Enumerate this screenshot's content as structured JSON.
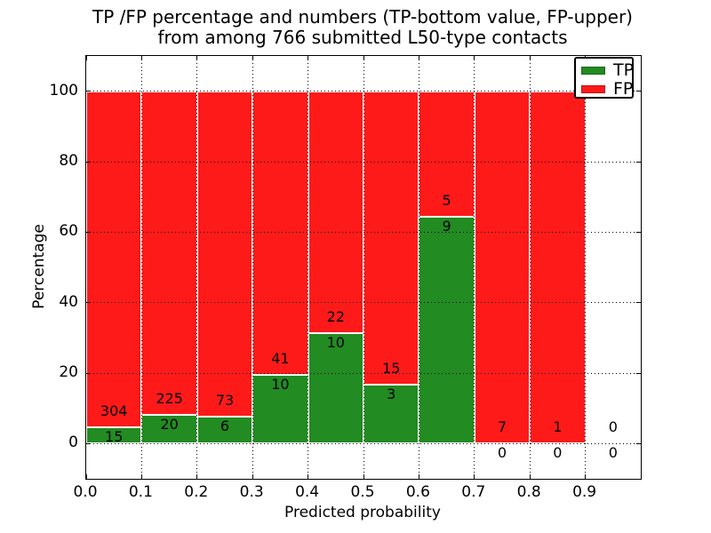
{
  "chart_data": {
    "type": "bar",
    "stacked": true,
    "normalized_to_percent": true,
    "title": "TP /FP percentage and numbers (TP-bottom value, FP-upper)\nfrom among 766 submitted L50-type contacts",
    "xlabel": "Predicted probability",
    "ylabel": "Percentage",
    "xlim": [
      0.0,
      1.0
    ],
    "ylim": [
      -10,
      110
    ],
    "xticks": [
      "0.0",
      "0.1",
      "0.2",
      "0.3",
      "0.4",
      "0.5",
      "0.6",
      "0.7",
      "0.8",
      "0.9"
    ],
    "yticks": [
      0,
      20,
      40,
      60,
      80,
      100
    ],
    "grid": true,
    "grid_style": "dotted-black",
    "bar_edge_color": "#ffffff",
    "series": [
      {
        "name": "TP",
        "color": "#228b22"
      },
      {
        "name": "FP",
        "color": "#ff1a1a"
      }
    ],
    "legend_position": "upper-right",
    "bins": [
      {
        "range": [
          0.0,
          0.1
        ],
        "tp": 15,
        "fp": 304
      },
      {
        "range": [
          0.1,
          0.2
        ],
        "tp": 20,
        "fp": 225
      },
      {
        "range": [
          0.2,
          0.3
        ],
        "tp": 6,
        "fp": 73
      },
      {
        "range": [
          0.3,
          0.4
        ],
        "tp": 10,
        "fp": 41
      },
      {
        "range": [
          0.4,
          0.5
        ],
        "tp": 10,
        "fp": 22
      },
      {
        "range": [
          0.5,
          0.6
        ],
        "tp": 3,
        "fp": 15
      },
      {
        "range": [
          0.6,
          0.7
        ],
        "tp": 9,
        "fp": 5
      },
      {
        "range": [
          0.7,
          0.8
        ],
        "tp": 0,
        "fp": 7
      },
      {
        "range": [
          0.8,
          0.9
        ],
        "tp": 0,
        "fp": 1
      },
      {
        "range": [
          0.9,
          1.0
        ],
        "tp": 0,
        "fp": 0
      }
    ],
    "total_contacts": 766
  }
}
